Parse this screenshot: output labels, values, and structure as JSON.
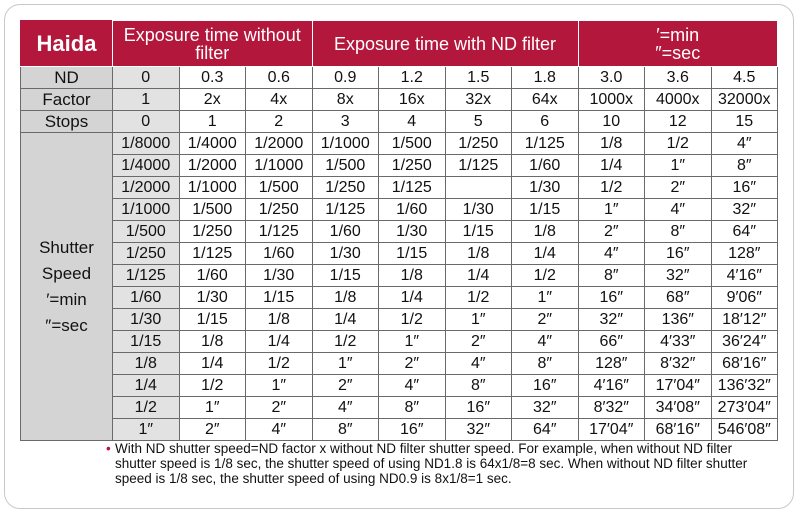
{
  "header": {
    "brand": "Haida",
    "without_filter": "Exposure time without filter",
    "with_filter": "Exposure time with ND filter",
    "units": [
      "′=min",
      "″=sec"
    ]
  },
  "table": {
    "top_rows": [
      {
        "label": "ND",
        "cells": [
          "0",
          "0.3",
          "0.6",
          "0.9",
          "1.2",
          "1.5",
          "1.8",
          "3.0",
          "3.6",
          "4.5"
        ]
      },
      {
        "label": "Factor",
        "cells": [
          "1",
          "2x",
          "4x",
          "8x",
          "16x",
          "32x",
          "64x",
          "1000x",
          "4000x",
          "32000x"
        ]
      },
      {
        "label": "Stops",
        "cells": [
          "0",
          "1",
          "2",
          "3",
          "4",
          "5",
          "6",
          "10",
          "12",
          "15"
        ]
      }
    ],
    "shutter_label": [
      "Shutter",
      "Speed",
      "′=min",
      "″=sec"
    ],
    "shutter_rows": [
      [
        "1/8000",
        "1/4000",
        "1/2000",
        "1/1000",
        "1/500",
        "1/250",
        "1/125",
        "1/8",
        "1/2",
        "4″"
      ],
      [
        "1/4000",
        "1/2000",
        "1/1000",
        "1/500",
        "1/250",
        "1/125",
        "1/60",
        "1/4",
        "1″",
        "8″"
      ],
      [
        "1/2000",
        "1/1000",
        "1/500",
        "1/250",
        "1/125",
        null,
        "1/30",
        "1/2",
        "2″",
        "16″"
      ],
      [
        "1/1000",
        "1/500",
        "1/250",
        "1/125",
        "1/60",
        "1/30",
        "1/15",
        "1″",
        "4″",
        "32″"
      ],
      [
        "1/500",
        "1/250",
        "1/125",
        "1/60",
        "1/30",
        "1/15",
        "1/8",
        "2″",
        "8″",
        "64″"
      ],
      [
        "1/250",
        "1/125",
        "1/60",
        "1/30",
        "1/15",
        "1/8",
        "1/4",
        "4″",
        "16″",
        "128″"
      ],
      [
        "1/125",
        "1/60",
        "1/30",
        "1/15",
        "1/8",
        "1/4",
        "1/2",
        "8″",
        "32″",
        "4′16″"
      ],
      [
        "1/60",
        "1/30",
        "1/15",
        "1/8",
        "1/4",
        "1/2",
        "1″",
        "16″",
        "68″",
        "9′06″"
      ],
      [
        "1/30",
        "1/15",
        "1/8",
        "1/4",
        "1/2",
        "1″",
        "2″",
        "32″",
        "136″",
        "18′12″"
      ],
      [
        "1/15",
        "1/8",
        "1/4",
        "1/2",
        "1″",
        "2″",
        "4″",
        "66″",
        "4′33″",
        "36′24″"
      ],
      [
        "1/8",
        "1/4",
        "1/2",
        "1″",
        "2″",
        "4″",
        "8″",
        "128″",
        "8′32″",
        "68′16″"
      ],
      [
        "1/4",
        "1/2",
        "1″",
        "2″",
        "4″",
        "8″",
        "16″",
        "4′16″",
        "17′04″",
        "136′32″"
      ],
      [
        "1/2",
        "1″",
        "2″",
        "4″",
        "8″",
        "16″",
        "32″",
        "8′32″",
        "34′08″",
        "273′04″"
      ],
      [
        "1″",
        "2″",
        "4″",
        "8″",
        "16″",
        "32″",
        "64″",
        "17′04″",
        "68′16″",
        "546′08″"
      ]
    ]
  },
  "footnote": "With ND shutter speed=ND factor x without ND filter shutter speed. For example, when without ND filter shutter speed is 1/8 sec, the shutter speed of using ND1.8 is 64x1/8=8 sec. When without ND filter shutter speed is 1/8 sec, the shutter speed of using ND0.9 is 8x1/8=1 sec."
}
